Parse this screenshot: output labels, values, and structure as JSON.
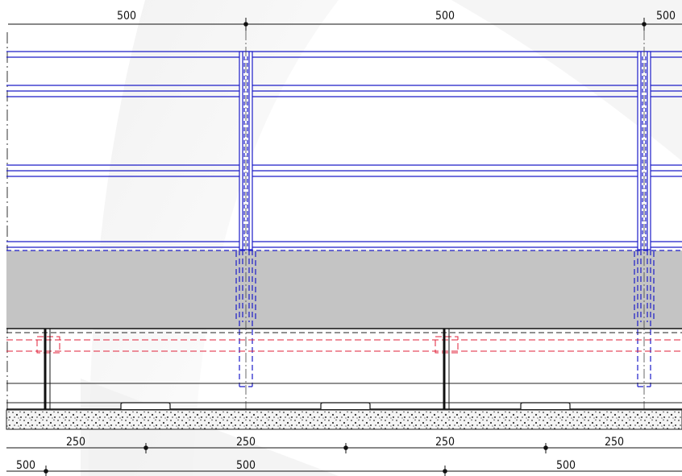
{
  "dimensions": {
    "top": [
      "500",
      "500",
      "500"
    ],
    "bottom_row1": [
      "250",
      "250",
      "250",
      "250"
    ],
    "bottom_row2": [
      "500",
      "500",
      "500"
    ]
  },
  "colors": {
    "rail_blue": "#1c1cc8",
    "fill_gray": "#c4c4c4",
    "hidden_red": "#e0223a",
    "ground_dark": "#222222",
    "background": "#ffffff"
  }
}
